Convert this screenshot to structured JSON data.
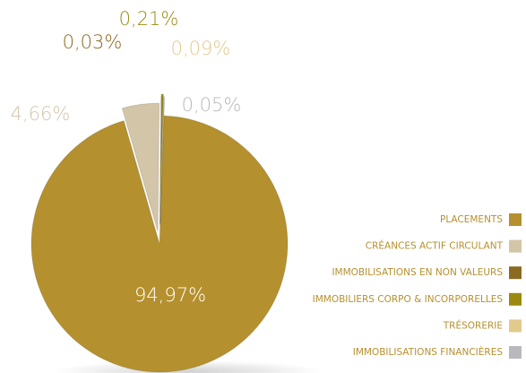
{
  "chart_data": {
    "type": "pie",
    "categories": [
      "PLACEMENTS",
      "CRÉANCES ACTIF CIRCULANT",
      "IMMOBILISATIONS EN NON VALEURS",
      "IMMOBILIERS CORPO & INCORPORELLES",
      "TRÉSORERIE",
      "IMMOBILISATIONS FINANCIÈRES"
    ],
    "values": [
      94.97,
      4.66,
      0.03,
      0.21,
      0.09,
      0.05
    ],
    "value_labels": [
      "94,97%",
      "4,66%",
      "0,03%",
      "0,21%",
      "0,09%",
      "0,05%"
    ],
    "colors": [
      "#b5902e",
      "#d3c5a7",
      "#8a6a22",
      "#9b8a0e",
      "#e2c98c",
      "#b9b9bd"
    ],
    "legend": "right"
  }
}
